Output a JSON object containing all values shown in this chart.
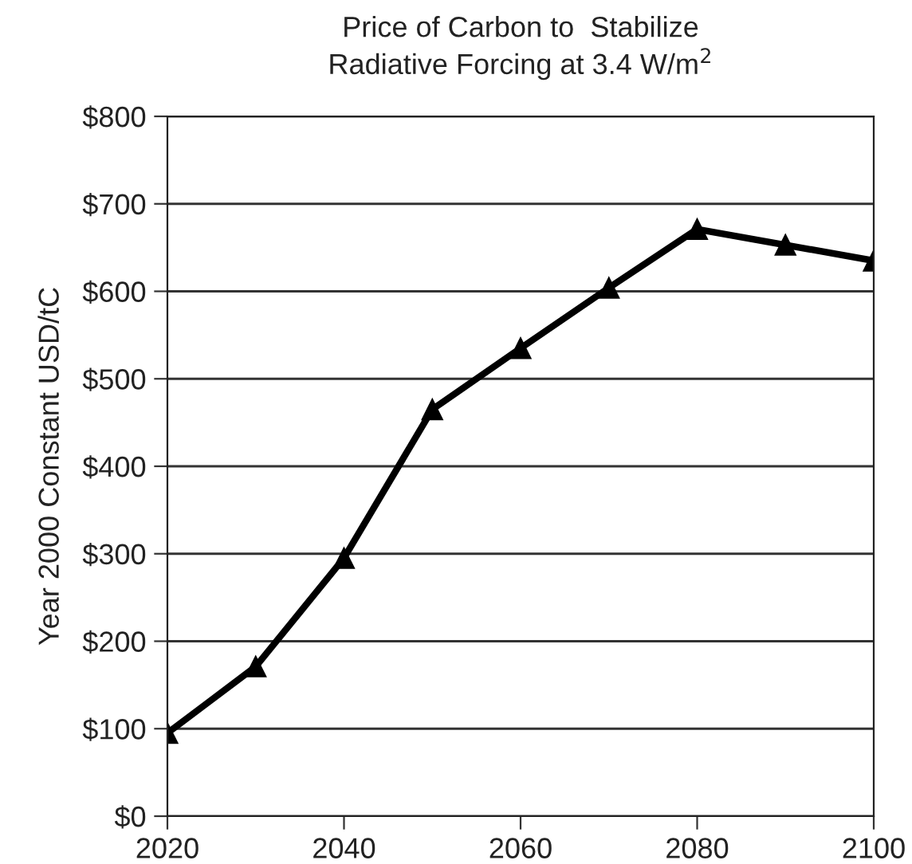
{
  "chart_data": {
    "type": "line",
    "title": "Price of Carbon to  Stabilize\nRadiative Forcing at 3.4 W/m$^{2}$",
    "ylabel": "Year 2000 Constant USD/tC",
    "x": [
      2020,
      2030,
      2040,
      2050,
      2060,
      2070,
      2080,
      2090,
      2100
    ],
    "series": [
      {
        "color": "#000000",
        "values": [
          95,
          171,
          295,
          465,
          535,
          604,
          671,
          653,
          635
        ]
      }
    ],
    "xlim": [
      2020,
      2100
    ],
    "xticks": [
      2020,
      2040,
      2060,
      2080,
      2100
    ],
    "ylim": [
      0,
      800
    ],
    "yticks": [
      {
        "value": 0,
        "label": "$0"
      },
      {
        "value": 100,
        "label": "$100"
      },
      {
        "value": 200,
        "label": "$200"
      },
      {
        "value": 300,
        "label": "$300"
      },
      {
        "value": 400,
        "label": "$400"
      },
      {
        "value": 500,
        "label": "$500"
      },
      {
        "value": 600,
        "label": "$600"
      },
      {
        "value": 700,
        "label": "$700"
      },
      {
        "value": 800,
        "label": "$800"
      }
    ],
    "grid": "y",
    "marker": "triangle",
    "line_style": "solid"
  }
}
